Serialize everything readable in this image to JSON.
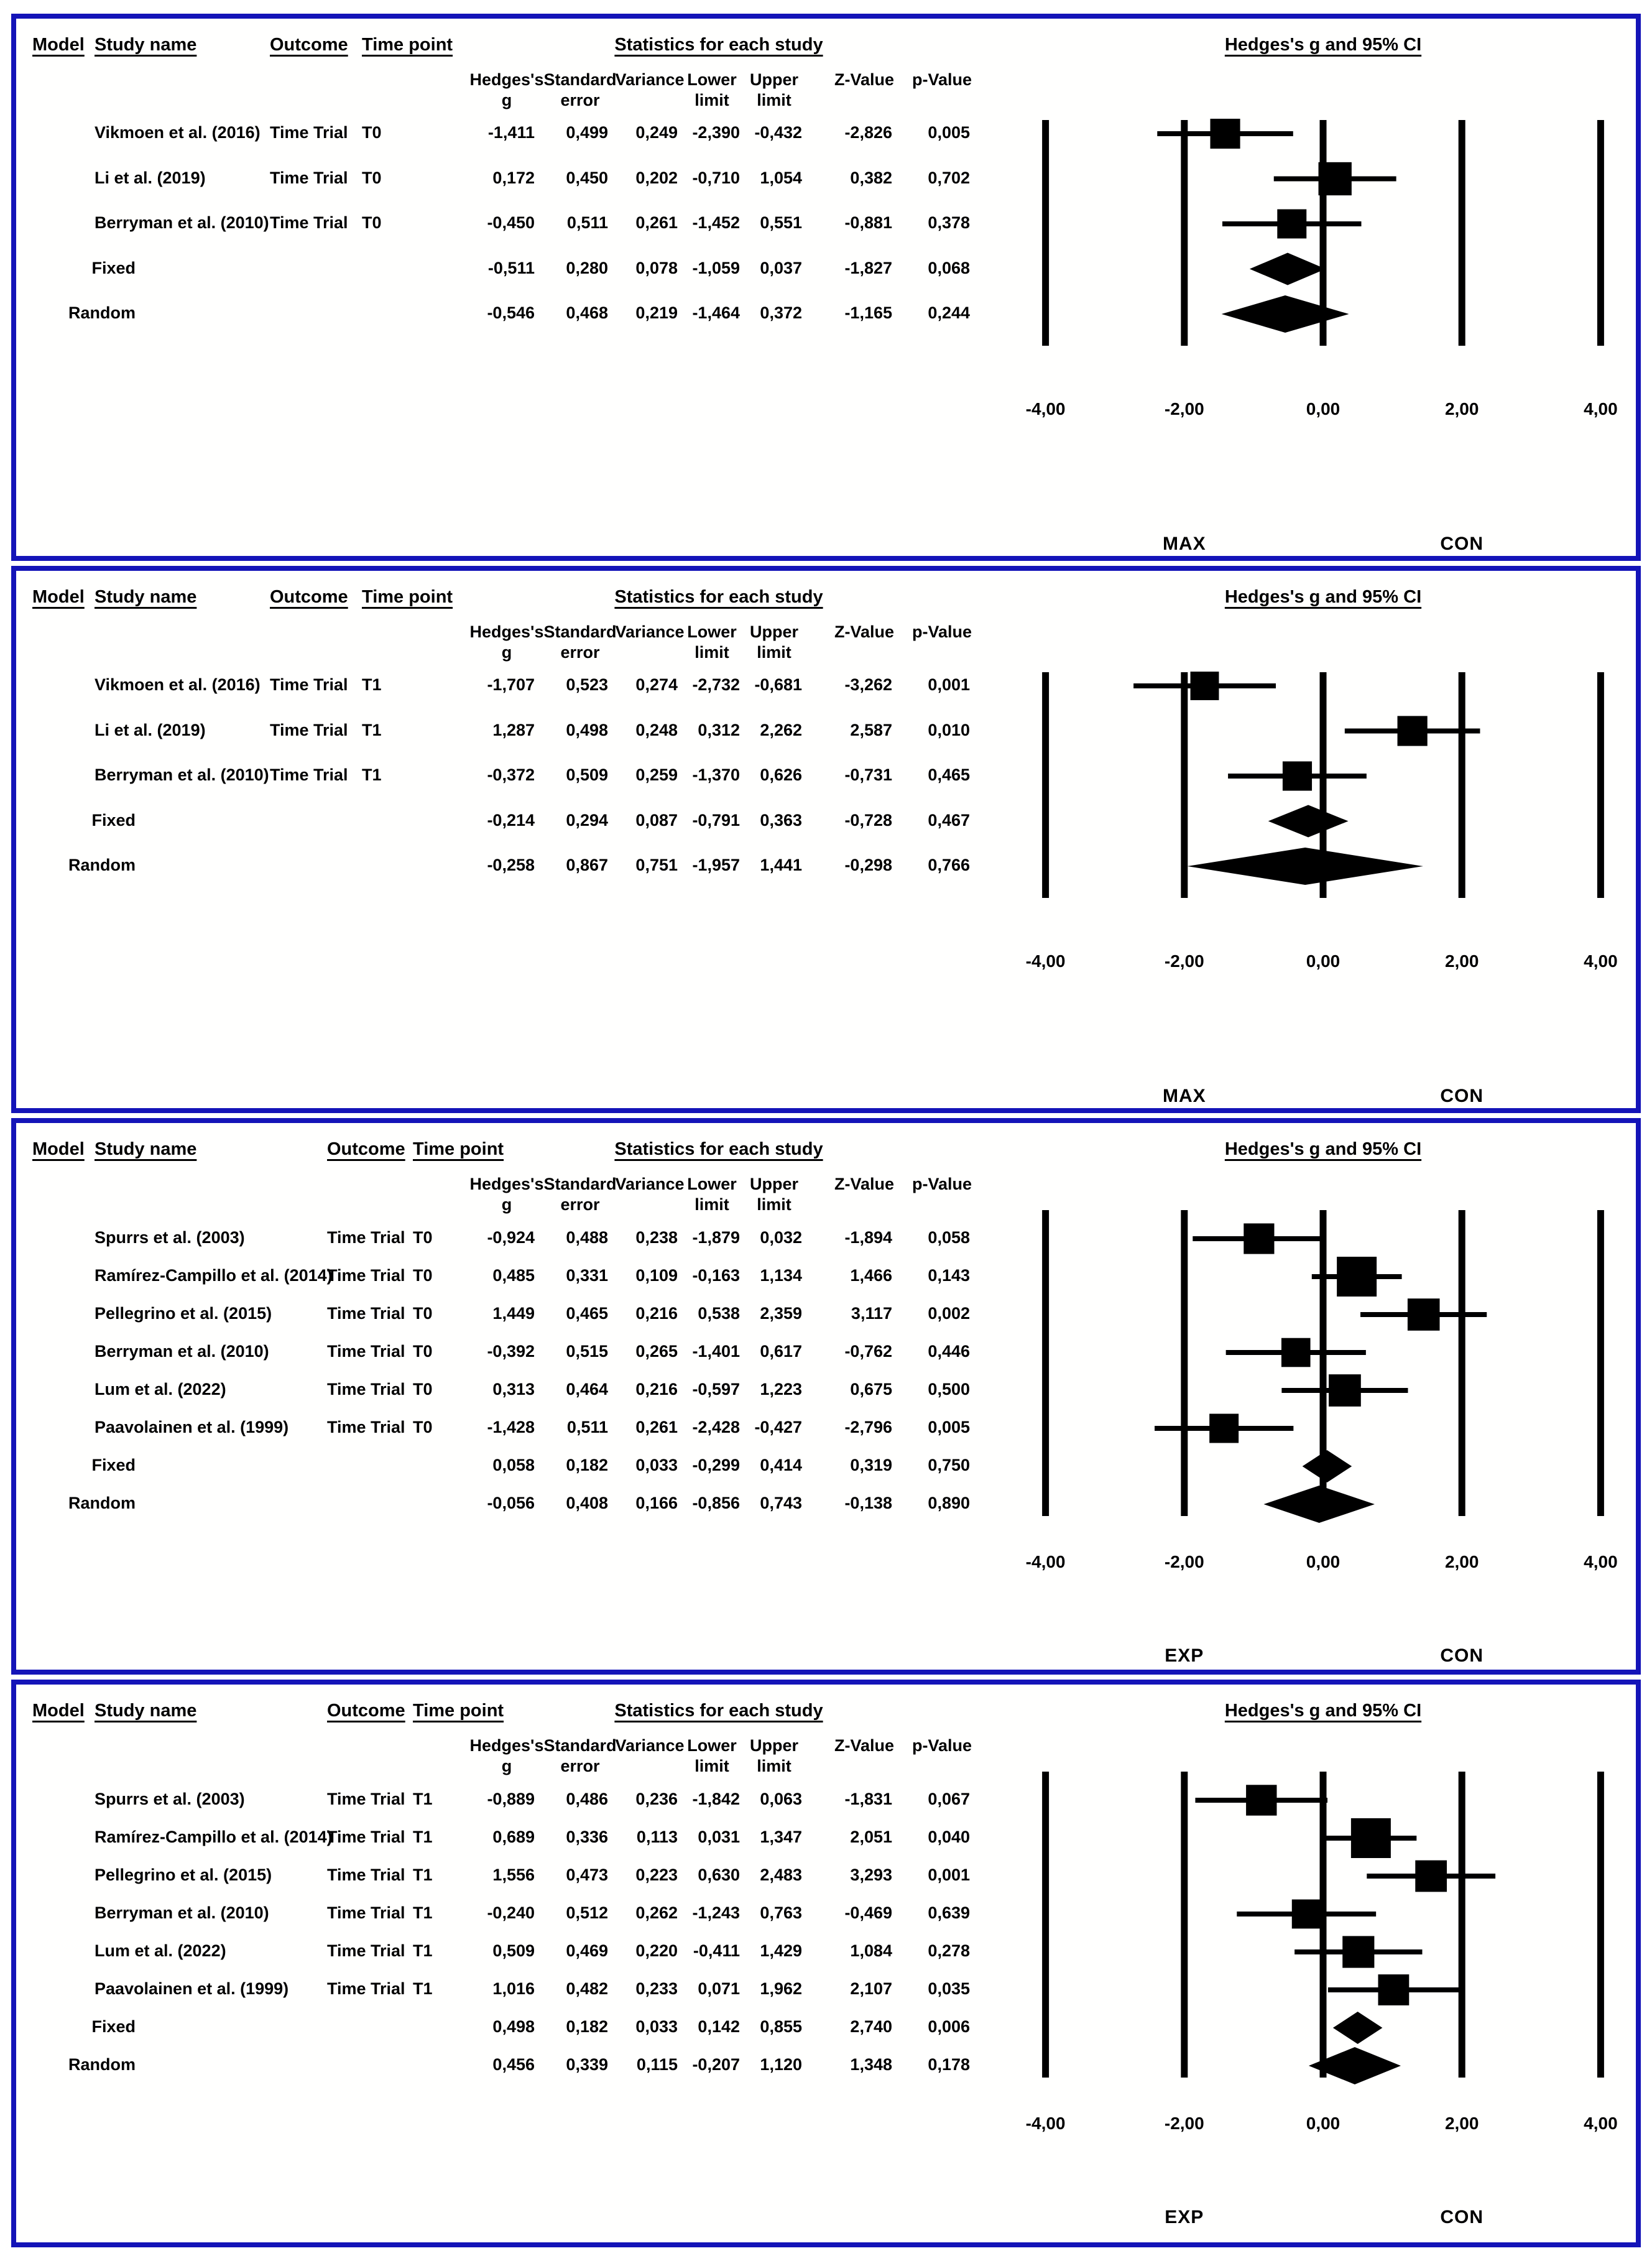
{
  "figure_title": "Forest plots of Hedges's g for Time Trial outcomes (fixed and random models)",
  "colors": {
    "panel_border": "#1414b8",
    "marker": "#000000",
    "text": "#000000",
    "background": "#ffffff"
  },
  "headers": {
    "model": "Model",
    "study": "Study name",
    "outcome": "Outcome",
    "timepoint": "Time point",
    "stats": "Statistics for each study",
    "plot": "Hedges's g and 95% CI"
  },
  "stat_cols": [
    [
      "Hedges's",
      "g"
    ],
    [
      "Standard",
      "error"
    ],
    [
      "",
      "Variance"
    ],
    [
      "Lower",
      "limit"
    ],
    [
      "Upper",
      "limit"
    ],
    [
      "",
      "Z-Value"
    ],
    [
      "",
      "p-Value"
    ]
  ],
  "axis": {
    "ticks": [
      "-4,00",
      "-2,00",
      "0,00",
      "2,00",
      "4,00"
    ],
    "values": [
      -4,
      -2,
      0,
      2,
      4
    ]
  },
  "panels": [
    {
      "group_labels": [
        "MAX",
        "CON"
      ],
      "rows": [
        {
          "model": "",
          "study": "Vikmoen et al. (2016)",
          "outcome": "Time Trial",
          "timepoint": "T0",
          "type": "study",
          "cells": [
            "-1,411",
            "0,499",
            "0,249",
            "-2,390",
            "-0,432",
            "-2,826",
            "0,005"
          ]
        },
        {
          "model": "",
          "study": "Li et al. (2019)",
          "outcome": "Time Trial",
          "timepoint": "T0",
          "type": "study",
          "cells": [
            "0,172",
            "0,450",
            "0,202",
            "-0,710",
            "1,054",
            "0,382",
            "0,702"
          ]
        },
        {
          "model": "",
          "study": "Berryman et al. (2010)",
          "outcome": "Time Trial",
          "timepoint": "T0",
          "type": "study",
          "cells": [
            "-0,450",
            "0,511",
            "0,261",
            "-1,452",
            "0,551",
            "-0,881",
            "0,378"
          ]
        },
        {
          "model": "Fixed",
          "study": "",
          "outcome": "",
          "timepoint": "",
          "type": "fixed",
          "cells": [
            "-0,511",
            "0,280",
            "0,078",
            "-1,059",
            "0,037",
            "-1,827",
            "0,068"
          ]
        },
        {
          "model": "Random",
          "study": "",
          "outcome": "",
          "timepoint": "",
          "type": "random",
          "cells": [
            "-0,546",
            "0,468",
            "0,219",
            "-1,464",
            "0,372",
            "-1,165",
            "0,244"
          ]
        }
      ]
    },
    {
      "group_labels": [
        "MAX",
        "CON"
      ],
      "rows": [
        {
          "model": "",
          "study": "Vikmoen et al. (2016)",
          "outcome": "Time Trial",
          "timepoint": "T1",
          "type": "study",
          "cells": [
            "-1,707",
            "0,523",
            "0,274",
            "-2,732",
            "-0,681",
            "-3,262",
            "0,001"
          ]
        },
        {
          "model": "",
          "study": "Li et al. (2019)",
          "outcome": "Time Trial",
          "timepoint": "T1",
          "type": "study",
          "cells": [
            "1,287",
            "0,498",
            "0,248",
            "0,312",
            "2,262",
            "2,587",
            "0,010"
          ]
        },
        {
          "model": "",
          "study": "Berryman et al. (2010)",
          "outcome": "Time Trial",
          "timepoint": "T1",
          "type": "study",
          "cells": [
            "-0,372",
            "0,509",
            "0,259",
            "-1,370",
            "0,626",
            "-0,731",
            "0,465"
          ]
        },
        {
          "model": "Fixed",
          "study": "",
          "outcome": "",
          "timepoint": "",
          "type": "fixed",
          "cells": [
            "-0,214",
            "0,294",
            "0,087",
            "-0,791",
            "0,363",
            "-0,728",
            "0,467"
          ]
        },
        {
          "model": "Random",
          "study": "",
          "outcome": "",
          "timepoint": "",
          "type": "random",
          "cells": [
            "-0,258",
            "0,867",
            "0,751",
            "-1,957",
            "1,441",
            "-0,298",
            "0,766"
          ]
        }
      ]
    },
    {
      "group_labels": [
        "EXP",
        "CON"
      ],
      "rows": [
        {
          "model": "",
          "study": "Spurrs et al. (2003)",
          "outcome": "Time Trial",
          "timepoint": "T0",
          "type": "study",
          "cells": [
            "-0,924",
            "0,488",
            "0,238",
            "-1,879",
            "0,032",
            "-1,894",
            "0,058"
          ]
        },
        {
          "model": "",
          "study": "Ramírez-Campillo et al. (2014)",
          "outcome": "Time Trial",
          "timepoint": "T0",
          "type": "study",
          "cells": [
            "0,485",
            "0,331",
            "0,109",
            "-0,163",
            "1,134",
            "1,466",
            "0,143"
          ]
        },
        {
          "model": "",
          "study": "Pellegrino et al. (2015)",
          "outcome": "Time Trial",
          "timepoint": "T0",
          "type": "study",
          "cells": [
            "1,449",
            "0,465",
            "0,216",
            "0,538",
            "2,359",
            "3,117",
            "0,002"
          ]
        },
        {
          "model": "",
          "study": "Berryman et al. (2010)",
          "outcome": "Time Trial",
          "timepoint": "T0",
          "type": "study",
          "cells": [
            "-0,392",
            "0,515",
            "0,265",
            "-1,401",
            "0,617",
            "-0,762",
            "0,446"
          ]
        },
        {
          "model": "",
          "study": "Lum et al. (2022)",
          "outcome": "Time Trial",
          "timepoint": "T0",
          "type": "study",
          "cells": [
            "0,313",
            "0,464",
            "0,216",
            "-0,597",
            "1,223",
            "0,675",
            "0,500"
          ]
        },
        {
          "model": "",
          "study": "Paavolainen et al. (1999)",
          "outcome": "Time Trial",
          "timepoint": "T0",
          "type": "study",
          "cells": [
            "-1,428",
            "0,511",
            "0,261",
            "-2,428",
            "-0,427",
            "-2,796",
            "0,005"
          ]
        },
        {
          "model": "Fixed",
          "study": "",
          "outcome": "",
          "timepoint": "",
          "type": "fixed",
          "cells": [
            "0,058",
            "0,182",
            "0,033",
            "-0,299",
            "0,414",
            "0,319",
            "0,750"
          ]
        },
        {
          "model": "Random",
          "study": "",
          "outcome": "",
          "timepoint": "",
          "type": "random",
          "cells": [
            "-0,056",
            "0,408",
            "0,166",
            "-0,856",
            "0,743",
            "-0,138",
            "0,890"
          ]
        }
      ]
    },
    {
      "group_labels": [
        "EXP",
        "CON"
      ],
      "rows": [
        {
          "model": "",
          "study": "Spurrs et al. (2003)",
          "outcome": "Time Trial",
          "timepoint": "T1",
          "type": "study",
          "cells": [
            "-0,889",
            "0,486",
            "0,236",
            "-1,842",
            "0,063",
            "-1,831",
            "0,067"
          ]
        },
        {
          "model": "",
          "study": "Ramírez-Campillo et al. (2014)",
          "outcome": "Time Trial",
          "timepoint": "T1",
          "type": "study",
          "cells": [
            "0,689",
            "0,336",
            "0,113",
            "0,031",
            "1,347",
            "2,051",
            "0,040"
          ]
        },
        {
          "model": "",
          "study": "Pellegrino et al. (2015)",
          "outcome": "Time Trial",
          "timepoint": "T1",
          "type": "study",
          "cells": [
            "1,556",
            "0,473",
            "0,223",
            "0,630",
            "2,483",
            "3,293",
            "0,001"
          ]
        },
        {
          "model": "",
          "study": "Berryman et al. (2010)",
          "outcome": "Time Trial",
          "timepoint": "T1",
          "type": "study",
          "cells": [
            "-0,240",
            "0,512",
            "0,262",
            "-1,243",
            "0,763",
            "-0,469",
            "0,639"
          ]
        },
        {
          "model": "",
          "study": "Lum et al. (2022)",
          "outcome": "Time Trial",
          "timepoint": "T1",
          "type": "study",
          "cells": [
            "0,509",
            "0,469",
            "0,220",
            "-0,411",
            "1,429",
            "1,084",
            "0,278"
          ]
        },
        {
          "model": "",
          "study": "Paavolainen et al. (1999)",
          "outcome": "Time Trial",
          "timepoint": "T1",
          "type": "study",
          "cells": [
            "1,016",
            "0,482",
            "0,233",
            "0,071",
            "1,962",
            "2,107",
            "0,035"
          ]
        },
        {
          "model": "Fixed",
          "study": "",
          "outcome": "",
          "timepoint": "",
          "type": "fixed",
          "cells": [
            "0,498",
            "0,182",
            "0,033",
            "0,142",
            "0,855",
            "2,740",
            "0,006"
          ]
        },
        {
          "model": "Random",
          "study": "",
          "outcome": "",
          "timepoint": "",
          "type": "random",
          "cells": [
            "0,456",
            "0,339",
            "0,115",
            "-0,207",
            "1,120",
            "1,348",
            "0,178"
          ]
        }
      ]
    }
  ],
  "chart_data": [
    {
      "type": "forest",
      "title": "Hedges's g and 95% CI",
      "xlim": [
        -4,
        4
      ],
      "x_ticks": [
        -4,
        -2,
        0,
        2,
        4
      ],
      "group_labels": {
        "left": "MAX",
        "right": "CON"
      },
      "points": [
        {
          "label": "Vikmoen et al. (2016) T0",
          "g": -1.411,
          "lower": -2.39,
          "upper": -0.432,
          "se": 0.499,
          "marker": "square"
        },
        {
          "label": "Li et al. (2019) T0",
          "g": 0.172,
          "lower": -0.71,
          "upper": 1.054,
          "se": 0.45,
          "marker": "square"
        },
        {
          "label": "Berryman et al. (2010) T0",
          "g": -0.45,
          "lower": -1.452,
          "upper": 0.551,
          "se": 0.511,
          "marker": "square"
        },
        {
          "label": "Fixed",
          "g": -0.511,
          "lower": -1.059,
          "upper": 0.037,
          "se": 0.28,
          "marker": "diamond"
        },
        {
          "label": "Random",
          "g": -0.546,
          "lower": -1.464,
          "upper": 0.372,
          "se": 0.468,
          "marker": "diamond"
        }
      ]
    },
    {
      "type": "forest",
      "title": "Hedges's g and 95% CI",
      "xlim": [
        -4,
        4
      ],
      "x_ticks": [
        -4,
        -2,
        0,
        2,
        4
      ],
      "group_labels": {
        "left": "MAX",
        "right": "CON"
      },
      "points": [
        {
          "label": "Vikmoen et al. (2016) T1",
          "g": -1.707,
          "lower": -2.732,
          "upper": -0.681,
          "se": 0.523,
          "marker": "square"
        },
        {
          "label": "Li et al. (2019) T1",
          "g": 1.287,
          "lower": 0.312,
          "upper": 2.262,
          "se": 0.498,
          "marker": "square"
        },
        {
          "label": "Berryman et al. (2010) T1",
          "g": -0.372,
          "lower": -1.37,
          "upper": 0.626,
          "se": 0.509,
          "marker": "square"
        },
        {
          "label": "Fixed",
          "g": -0.214,
          "lower": -0.791,
          "upper": 0.363,
          "se": 0.294,
          "marker": "diamond"
        },
        {
          "label": "Random",
          "g": -0.258,
          "lower": -1.957,
          "upper": 1.441,
          "se": 0.867,
          "marker": "diamond"
        }
      ]
    },
    {
      "type": "forest",
      "title": "Hedges's g and 95% CI",
      "xlim": [
        -4,
        4
      ],
      "x_ticks": [
        -4,
        -2,
        0,
        2,
        4
      ],
      "group_labels": {
        "left": "EXP",
        "right": "CON"
      },
      "points": [
        {
          "label": "Spurrs et al. (2003) T0",
          "g": -0.924,
          "lower": -1.879,
          "upper": 0.032,
          "se": 0.488,
          "marker": "square"
        },
        {
          "label": "Ramírez-Campillo et al. (2014) T0",
          "g": 0.485,
          "lower": -0.163,
          "upper": 1.134,
          "se": 0.331,
          "marker": "square"
        },
        {
          "label": "Pellegrino et al. (2015) T0",
          "g": 1.449,
          "lower": 0.538,
          "upper": 2.359,
          "se": 0.465,
          "marker": "square"
        },
        {
          "label": "Berryman et al. (2010) T0",
          "g": -0.392,
          "lower": -1.401,
          "upper": 0.617,
          "se": 0.515,
          "marker": "square"
        },
        {
          "label": "Lum et al. (2022) T0",
          "g": 0.313,
          "lower": -0.597,
          "upper": 1.223,
          "se": 0.464,
          "marker": "square"
        },
        {
          "label": "Paavolainen et al. (1999) T0",
          "g": -1.428,
          "lower": -2.428,
          "upper": -0.427,
          "se": 0.511,
          "marker": "square"
        },
        {
          "label": "Fixed",
          "g": 0.058,
          "lower": -0.299,
          "upper": 0.414,
          "se": 0.182,
          "marker": "diamond"
        },
        {
          "label": "Random",
          "g": -0.056,
          "lower": -0.856,
          "upper": 0.743,
          "se": 0.408,
          "marker": "diamond"
        }
      ]
    },
    {
      "type": "forest",
      "title": "Hedges's g and 95% CI",
      "xlim": [
        -4,
        4
      ],
      "x_ticks": [
        -4,
        -2,
        0,
        2,
        4
      ],
      "group_labels": {
        "left": "EXP",
        "right": "CON"
      },
      "points": [
        {
          "label": "Spurrs et al. (2003) T1",
          "g": -0.889,
          "lower": -1.842,
          "upper": 0.063,
          "se": 0.486,
          "marker": "square"
        },
        {
          "label": "Ramírez-Campillo et al. (2014) T1",
          "g": 0.689,
          "lower": 0.031,
          "upper": 1.347,
          "se": 0.336,
          "marker": "square"
        },
        {
          "label": "Pellegrino et al. (2015) T1",
          "g": 1.556,
          "lower": 0.63,
          "upper": 2.483,
          "se": 0.473,
          "marker": "square"
        },
        {
          "label": "Berryman et al. (2010) T1",
          "g": -0.24,
          "lower": -1.243,
          "upper": 0.763,
          "se": 0.512,
          "marker": "square"
        },
        {
          "label": "Lum et al. (2022) T1",
          "g": 0.509,
          "lower": -0.411,
          "upper": 1.429,
          "se": 0.469,
          "marker": "square"
        },
        {
          "label": "Paavolainen et al. (1999) T1",
          "g": 1.016,
          "lower": 0.071,
          "upper": 1.962,
          "se": 0.482,
          "marker": "square"
        },
        {
          "label": "Fixed",
          "g": 0.498,
          "lower": 0.142,
          "upper": 0.855,
          "se": 0.182,
          "marker": "diamond"
        },
        {
          "label": "Random",
          "g": 0.456,
          "lower": -0.207,
          "upper": 1.12,
          "se": 0.339,
          "marker": "diamond"
        }
      ]
    }
  ]
}
